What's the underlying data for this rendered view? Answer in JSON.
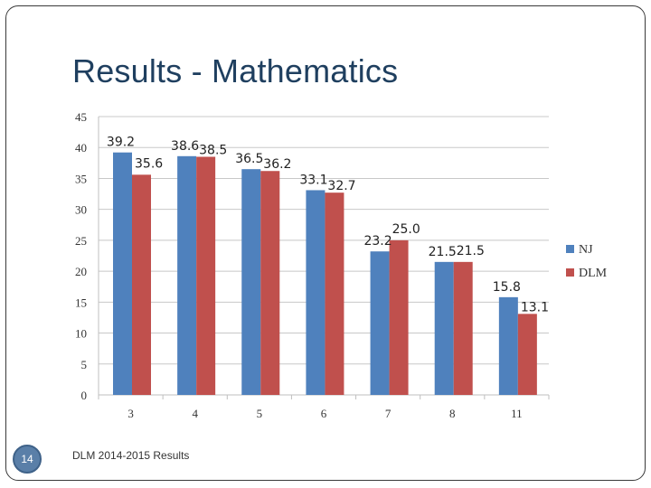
{
  "slide": {
    "title": "Results - Mathematics",
    "page_number": "14",
    "footer": "DLM 2014-2015 Results"
  },
  "chart_data": {
    "type": "bar",
    "title": "",
    "xlabel": "",
    "ylabel": "",
    "categories": [
      "3",
      "4",
      "5",
      "6",
      "7",
      "8",
      "11"
    ],
    "series": [
      {
        "name": "NJ",
        "color": "#4f81bd",
        "values": [
          39.2,
          38.6,
          36.5,
          33.1,
          23.2,
          21.5,
          15.8
        ]
      },
      {
        "name": "DLM",
        "color": "#c0504d",
        "values": [
          35.6,
          38.5,
          36.2,
          32.7,
          25.0,
          21.5,
          13.1
        ]
      }
    ],
    "ylim": [
      0,
      45
    ],
    "yticks": [
      0,
      5,
      10,
      15,
      20,
      25,
      30,
      35,
      40,
      45
    ],
    "grid": true,
    "legend_position": "right",
    "data_labels": true
  }
}
